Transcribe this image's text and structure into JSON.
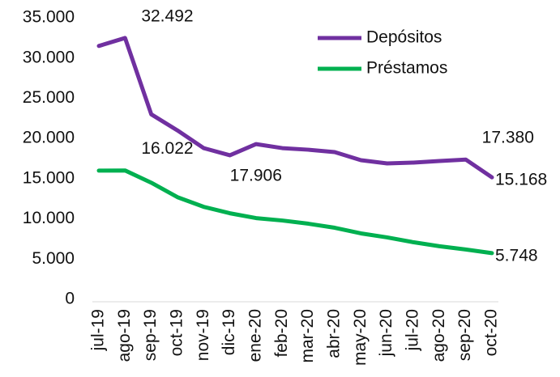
{
  "chart_data": {
    "type": "line",
    "categories": [
      "jul-19",
      "ago-19",
      "sep-19",
      "oct-19",
      "nov-19",
      "dic-19",
      "ene-20",
      "feb-20",
      "mar-20",
      "abr-20",
      "may-20",
      "jun-20",
      "jul-20",
      "ago-20",
      "sep-20",
      "oct-20"
    ],
    "series": [
      {
        "name": "Depósitos",
        "color": "#7030a0",
        "values": [
          31500,
          32492,
          23000,
          21000,
          18800,
          17906,
          19300,
          18800,
          18600,
          18300,
          17300,
          16900,
          17000,
          17200,
          17380,
          15168
        ],
        "value_labels": [
          null,
          "32.492",
          null,
          null,
          null,
          "17.906",
          null,
          null,
          null,
          null,
          null,
          null,
          null,
          null,
          "17.380",
          "15.168"
        ]
      },
      {
        "name": "Préstamos",
        "color": "#00b050",
        "values": [
          16000,
          16022,
          14500,
          12700,
          11500,
          10700,
          10100,
          9800,
          9400,
          8900,
          8200,
          7700,
          7100,
          6600,
          6200,
          5748
        ],
        "value_labels": [
          null,
          "16.022",
          null,
          null,
          null,
          null,
          null,
          null,
          null,
          null,
          null,
          null,
          null,
          null,
          null,
          "5.748"
        ]
      }
    ],
    "ylim": [
      0,
      35000
    ],
    "yticks": [
      0,
      {
        "value": 5000,
        "label": "5.000"
      },
      {
        "value": 10000,
        "label": "10.000"
      },
      {
        "value": 15000,
        "label": "15.000"
      },
      {
        "value": 20000,
        "label": "20.000"
      },
      {
        "value": 25000,
        "label": "25.000"
      },
      {
        "value": 30000,
        "label": "30.000"
      },
      {
        "value": 35000,
        "label": "35.000"
      }
    ],
    "grid": false,
    "legend": "top-right"
  }
}
